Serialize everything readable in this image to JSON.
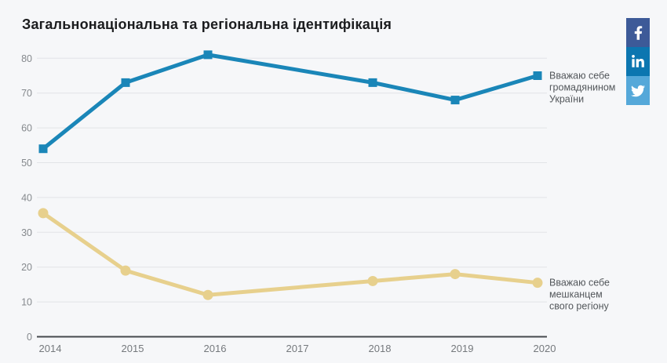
{
  "page": {
    "background": "#f6f7f9"
  },
  "title": "Загальнонаціональна та регіональна ідентифікація",
  "social": {
    "items": [
      {
        "icon": "facebook-icon",
        "color": "#3d5a98"
      },
      {
        "icon": "linkedin-icon",
        "color": "#0c76b0"
      },
      {
        "icon": "twitter-icon",
        "color": "#55a8d9"
      }
    ]
  },
  "chart_data": {
    "type": "line",
    "title": "Загальнонаціональна та регіональна ідентифікація",
    "categories": [
      "2014",
      "2015",
      "2016",
      "2017",
      "2018",
      "2019",
      "2020"
    ],
    "series": [
      {
        "name": "Вважаю себе громадянином України",
        "label_lines": [
          "Вважаю себе",
          "громадянином",
          "України"
        ],
        "color": "#1a86b8",
        "marker": "square",
        "values": [
          54,
          73,
          81,
          null,
          73,
          68,
          75
        ]
      },
      {
        "name": "Вважаю себе мешканцем свого регіону",
        "label_lines": [
          "Вважаю себе",
          "мешканцем",
          "свого регіону"
        ],
        "color": "#e7d08d",
        "marker": "circle",
        "values": [
          35.5,
          19,
          12,
          null,
          16,
          18,
          15.5
        ]
      }
    ],
    "xlabel": "",
    "ylabel": "",
    "ylim": [
      0,
      80
    ],
    "ytick_step": 10,
    "grid": true,
    "legend_position": "end-of-line-labels",
    "colors": {
      "grid_line": "#e2e4e7",
      "axis_line": "#45494d",
      "tick_label": "#85898d",
      "series_label_text": "#53575b"
    }
  }
}
